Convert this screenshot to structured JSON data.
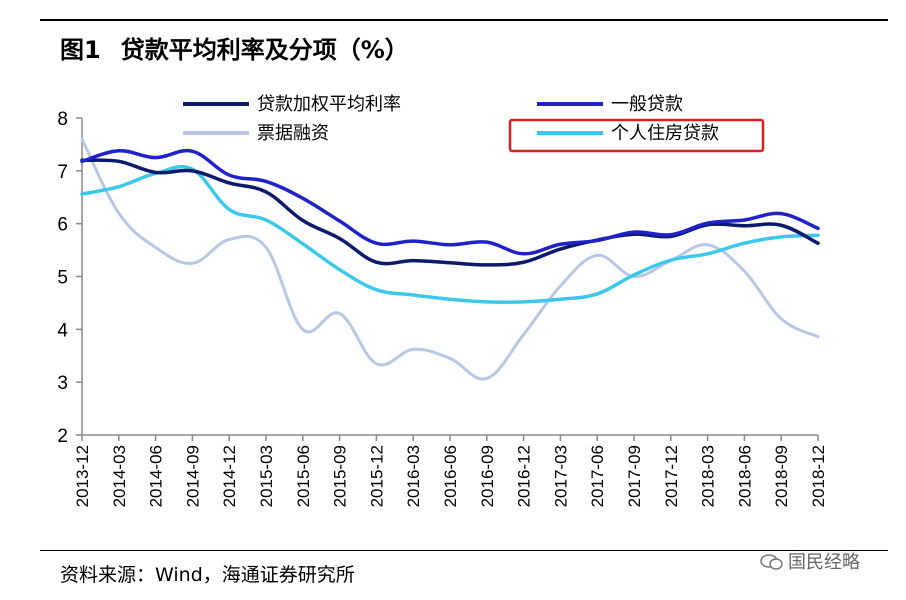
{
  "header": {
    "figure_number": "图1",
    "title": "贷款平均利率及分项（%）"
  },
  "footer": {
    "source": "资料来源：Wind，海通证券研究所",
    "watermark": "国民经略"
  },
  "colors": {
    "weighted": "#0b1a6b",
    "general": "#1e22c8",
    "bills": "#b8c7e3",
    "housing": "#3cc8ea",
    "highlight": "#e02020"
  },
  "chart_data": {
    "type": "line",
    "title": "贷款平均利率及分项（%）",
    "xlabel": "",
    "ylabel": "",
    "ylim": [
      2,
      8
    ],
    "yticks": [
      2,
      3,
      4,
      5,
      6,
      7,
      8
    ],
    "grid": false,
    "legend_position": "top",
    "categories": [
      "2013-12",
      "2014-03",
      "2014-06",
      "2014-09",
      "2014-12",
      "2015-03",
      "2015-06",
      "2015-09",
      "2015-12",
      "2016-03",
      "2016-06",
      "2016-09",
      "2016-12",
      "2017-03",
      "2017-06",
      "2017-09",
      "2017-12",
      "2018-03",
      "2018-06",
      "2018-09",
      "2018-12"
    ],
    "series": [
      {
        "key": "weighted",
        "name": "贷款加权平均利率",
        "values": [
          7.2,
          7.18,
          6.97,
          7.0,
          6.77,
          6.6,
          6.06,
          5.72,
          5.27,
          5.3,
          5.26,
          5.22,
          5.27,
          5.52,
          5.69,
          5.8,
          5.76,
          5.98,
          5.96,
          5.97,
          5.63
        ]
      },
      {
        "key": "general",
        "name": "一般贷款",
        "values": [
          7.18,
          7.38,
          7.25,
          7.37,
          6.92,
          6.8,
          6.48,
          6.05,
          5.63,
          5.67,
          5.6,
          5.65,
          5.43,
          5.61,
          5.68,
          5.84,
          5.79,
          6.01,
          6.07,
          6.19,
          5.91
        ]
      },
      {
        "key": "bills",
        "name": "票据融资",
        "values": [
          7.6,
          6.2,
          5.55,
          5.25,
          5.7,
          5.55,
          4.0,
          4.3,
          3.35,
          3.62,
          3.45,
          3.07,
          3.9,
          4.82,
          5.4,
          5.0,
          5.3,
          5.6,
          5.1,
          4.2,
          3.86
        ]
      },
      {
        "key": "housing",
        "name": "个人住房贷款",
        "values": [
          6.56,
          6.7,
          6.95,
          7.03,
          6.27,
          6.07,
          5.62,
          5.13,
          4.75,
          4.65,
          4.57,
          4.52,
          4.52,
          4.57,
          4.67,
          5.03,
          5.31,
          5.43,
          5.63,
          5.75,
          5.78
        ]
      }
    ]
  }
}
